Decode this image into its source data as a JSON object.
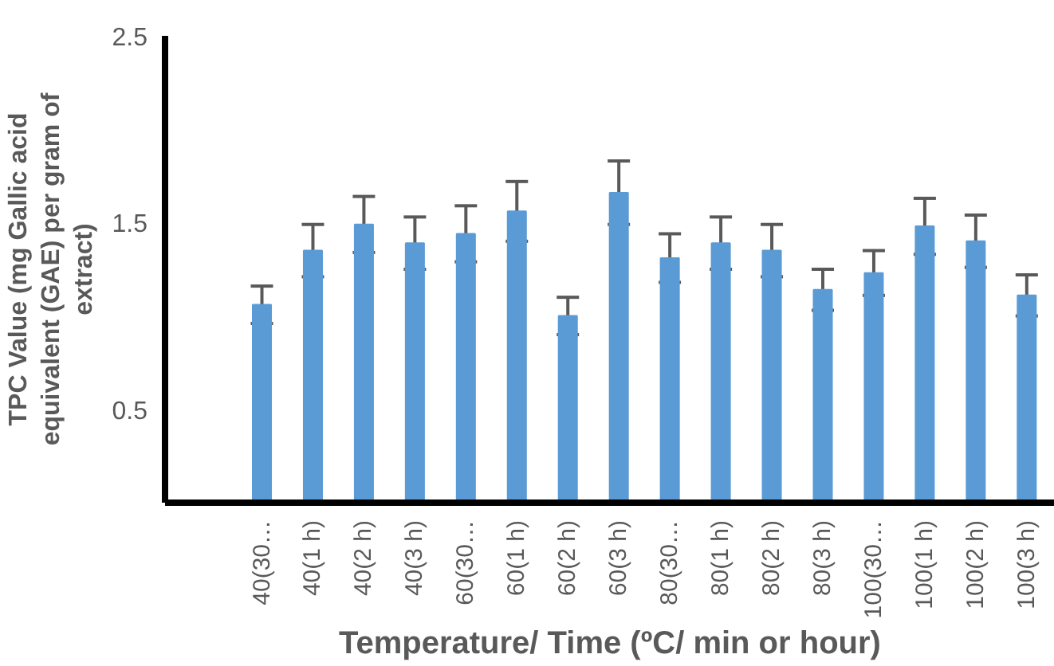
{
  "chart_data": {
    "type": "bar",
    "xlabel": "Temperature/ Time (ºC/ min or hour)",
    "ylabel": "TPC Value (mg Gallic acid equivalent (GAE) per gram of extract)",
    "categories": [
      null,
      "40(30…",
      "40(1 h)",
      "40(2 h)",
      "40(3 h)",
      "60(30…",
      "60(1 h)",
      "60(2 h)",
      "60(3 h)",
      "80(30…",
      "80(1 h)",
      "80(2 h)",
      "80(3 h)",
      "100(30…",
      "100(1 h)",
      "100(2 h)",
      "100(3 h)"
    ],
    "values": [
      null,
      1.06,
      1.35,
      1.49,
      1.39,
      1.44,
      1.56,
      1.0,
      1.66,
      1.31,
      1.39,
      1.35,
      1.14,
      1.23,
      1.48,
      1.4,
      1.11
    ],
    "errors": [
      null,
      0.1,
      0.14,
      0.15,
      0.14,
      0.15,
      0.16,
      0.1,
      0.17,
      0.13,
      0.14,
      0.14,
      0.11,
      0.12,
      0.15,
      0.14,
      0.11
    ],
    "color": "#5b9bd5",
    "ylim": [
      0,
      2.5
    ],
    "yticks": [
      0.5,
      1.5,
      2.5
    ],
    "grid": false
  }
}
